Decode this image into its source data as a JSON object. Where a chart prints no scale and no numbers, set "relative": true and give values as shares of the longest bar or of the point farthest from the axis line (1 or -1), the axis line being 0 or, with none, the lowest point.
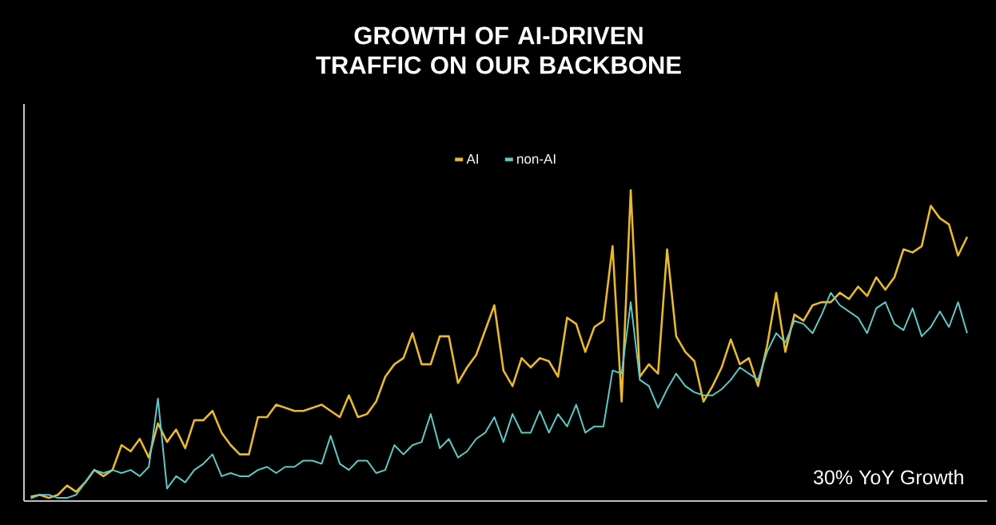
{
  "chart_data": {
    "type": "line",
    "title": "GROWTH OF AI-DRIVEN TRAFFIC ON OUR BACKBONE",
    "relative": true,
    "legend": "top",
    "annotations": [
      "30% YoY Growth"
    ],
    "categories": [
      null,
      null,
      null,
      null,
      null,
      null,
      null,
      null,
      null,
      null,
      null,
      null,
      null,
      null,
      null,
      null,
      null,
      null,
      null,
      null,
      null,
      null,
      null,
      null,
      null,
      null,
      null,
      null,
      null,
      null,
      null,
      null,
      null,
      null,
      null,
      null,
      null,
      null,
      null,
      null,
      null,
      null,
      null,
      null,
      null,
      null,
      null,
      null,
      null,
      null,
      null,
      null,
      null,
      null,
      null,
      null,
      null,
      null,
      null,
      null,
      null,
      null,
      null,
      null,
      null,
      null,
      null,
      null,
      null,
      null,
      null,
      null,
      null,
      null,
      null,
      null,
      null,
      null,
      null,
      null,
      null,
      null,
      null,
      null,
      null,
      null,
      null,
      null,
      null,
      null,
      null,
      null,
      null,
      null,
      null,
      null,
      null,
      null,
      null,
      null,
      null,
      null,
      null,
      null
    ],
    "series": [
      {
        "name": "AI",
        "color": "#e8b931",
        "values": [
          0.014,
          0.02,
          0.01,
          0.02,
          0.05,
          0.03,
          0.06,
          0.1,
          0.08,
          0.1,
          0.18,
          0.16,
          0.2,
          0.14,
          0.25,
          0.19,
          0.23,
          0.17,
          0.26,
          0.26,
          0.29,
          0.22,
          0.18,
          0.15,
          0.15,
          0.27,
          0.27,
          0.31,
          0.3,
          0.29,
          0.29,
          0.3,
          0.31,
          0.29,
          0.27,
          0.34,
          0.27,
          0.28,
          0.32,
          0.4,
          0.44,
          0.46,
          0.54,
          0.44,
          0.44,
          0.53,
          0.53,
          0.38,
          0.43,
          0.47,
          0.55,
          0.63,
          0.42,
          0.37,
          0.46,
          0.43,
          0.46,
          0.45,
          0.4,
          0.59,
          0.57,
          0.48,
          0.56,
          0.58,
          0.82,
          0.32,
          1.0,
          0.4,
          0.44,
          0.41,
          0.81,
          0.53,
          0.48,
          0.45,
          0.32,
          0.37,
          0.43,
          0.52,
          0.44,
          0.46,
          0.37,
          0.5,
          0.67,
          0.48,
          0.6,
          0.58,
          0.63,
          0.64,
          0.64,
          0.67,
          0.65,
          0.69,
          0.66,
          0.72,
          0.68,
          0.72,
          0.81,
          0.8,
          0.82,
          0.95,
          0.91,
          0.89,
          0.79,
          0.85
        ]
      },
      {
        "name": "non-AI",
        "color": "#5fc9c6",
        "values": [
          0.008,
          0.02,
          0.02,
          0.01,
          0.01,
          0.02,
          0.06,
          0.1,
          0.09,
          0.1,
          0.09,
          0.1,
          0.08,
          0.11,
          0.33,
          0.04,
          0.08,
          0.06,
          0.1,
          0.12,
          0.15,
          0.08,
          0.09,
          0.08,
          0.08,
          0.1,
          0.11,
          0.09,
          0.11,
          0.11,
          0.13,
          0.13,
          0.12,
          0.21,
          0.12,
          0.1,
          0.13,
          0.13,
          0.09,
          0.1,
          0.18,
          0.15,
          0.18,
          0.19,
          0.28,
          0.17,
          0.2,
          0.14,
          0.16,
          0.2,
          0.22,
          0.27,
          0.19,
          0.28,
          0.22,
          0.22,
          0.29,
          0.22,
          0.28,
          0.24,
          0.31,
          0.22,
          0.24,
          0.24,
          0.42,
          0.41,
          0.64,
          0.39,
          0.37,
          0.3,
          0.36,
          0.41,
          0.37,
          0.35,
          0.34,
          0.34,
          0.36,
          0.39,
          0.43,
          0.41,
          0.39,
          0.48,
          0.54,
          0.51,
          0.58,
          0.57,
          0.54,
          0.6,
          0.67,
          0.63,
          0.61,
          0.59,
          0.54,
          0.62,
          0.64,
          0.57,
          0.55,
          0.62,
          0.53,
          0.56,
          0.61,
          0.56,
          0.64,
          0.54
        ]
      }
    ]
  }
}
